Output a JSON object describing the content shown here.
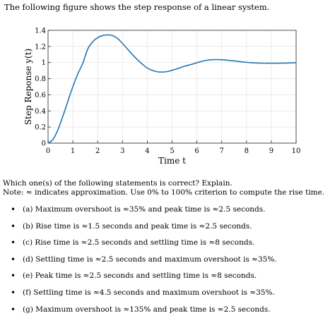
{
  "intro": "The following figure shows the step response of a linear system.",
  "chart_data": {
    "type": "line",
    "xlabel": "Time t",
    "ylabel": "Step Reponse y(t)",
    "xlim": [
      0,
      10
    ],
    "ylim": [
      0,
      1.4
    ],
    "xticks": [
      "0",
      "1",
      "2",
      "3",
      "4",
      "5",
      "6",
      "7",
      "8",
      "9",
      "10"
    ],
    "yticks": [
      "0",
      "0.2",
      "0.4",
      "0.6",
      "0.8",
      "1",
      "1.2",
      "1.4"
    ],
    "grid": true,
    "color": "#1f77b4",
    "series": [
      {
        "x": [
          0,
          0.2,
          0.4,
          0.6,
          0.8,
          1.0,
          1.2,
          1.4,
          1.6,
          1.8,
          2.0,
          2.2,
          2.4,
          2.6,
          2.8,
          3.0,
          3.2,
          3.4,
          3.6,
          3.8,
          4.0,
          4.2,
          4.4,
          4.6,
          4.8,
          5.0,
          5.2,
          5.4,
          5.6,
          5.8,
          6.0,
          6.2,
          6.4,
          6.6,
          6.8,
          7.0,
          7.2,
          7.4,
          7.6,
          7.8,
          8.0,
          8.2,
          8.4,
          8.6,
          8.8,
          9.0,
          9.2,
          9.4,
          9.6,
          9.8,
          10.0
        ],
        "y": [
          0,
          0.046,
          0.168,
          0.336,
          0.521,
          0.701,
          0.86,
          0.991,
          1.168,
          1.258,
          1.309,
          1.335,
          1.343,
          1.334,
          1.299,
          1.237,
          1.168,
          1.099,
          1.036,
          0.98,
          0.932,
          0.903,
          0.886,
          0.882,
          0.888,
          0.904,
          0.923,
          0.944,
          0.962,
          0.979,
          0.998,
          1.016,
          1.028,
          1.035,
          1.037,
          1.035,
          1.03,
          1.024,
          1.017,
          1.009,
          1.003,
          0.998,
          0.995,
          0.993,
          0.992,
          0.992,
          0.992,
          0.993,
          0.994,
          0.996,
          0.998
        ]
      }
    ]
  },
  "question_line1": "Which one(s) of the following statements is correct? Explain.",
  "question_line2": "Note: ≈ indicates approximation. Use 0% to 100% criterion to compute the rise time.",
  "options": [
    "(a) Maximum overshoot is ≈35% and peak time is ≈2.5 seconds.",
    "(b) Rise time is ≈1.5 seconds and peak time is ≈2.5 seconds.",
    "(c) Rise time is ≈2.5 seconds and settling time is ≈8 seconds.",
    "(d) Settling time is ≈2.5 seconds and maximum overshoot is ≈35%.",
    "(e) Peak time is ≈2.5 seconds and settling time is ≈8 seconds.",
    "(f) Settling time is ≈4.5 seconds and maximum overshoot is ≈35%.",
    "(g) Maximum overshoot is ≈135% and peak time is ≈2.5 seconds."
  ]
}
